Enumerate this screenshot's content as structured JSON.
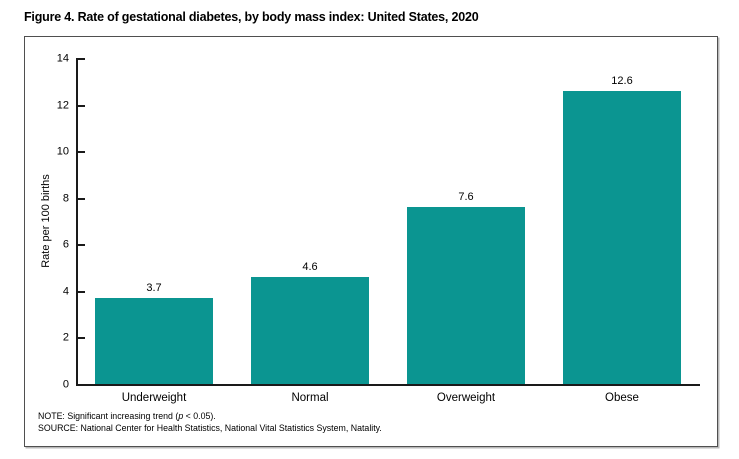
{
  "figure": {
    "title": "Figure 4. Rate of gestational diabetes, by body mass index: United States, 2020"
  },
  "chart_data": {
    "type": "bar",
    "title": "Figure 4. Rate of gestational diabetes, by body mass index: United States, 2020",
    "categories": [
      "Underweight",
      "Normal",
      "Overweight",
      "Obese"
    ],
    "values": [
      3.7,
      4.6,
      7.6,
      12.6
    ],
    "value_labels": [
      "3.7",
      "4.6",
      "7.6",
      "12.6"
    ],
    "xlabel": "",
    "ylabel": "Rate per 100 births",
    "ylim": [
      0,
      14
    ],
    "yticks": [
      0,
      2,
      4,
      6,
      8,
      10,
      12,
      14
    ],
    "grid": false,
    "legend": false,
    "bar_color": "#0b9591",
    "axis_color": "#1a1a1a"
  },
  "notes": {
    "note_prefix": "NOTE: Significant increasing trend (",
    "note_italic": "p",
    "note_suffix": " < 0.05).",
    "source": "SOURCE: National Center for Health Statistics, National Vital Statistics System, Natality."
  }
}
